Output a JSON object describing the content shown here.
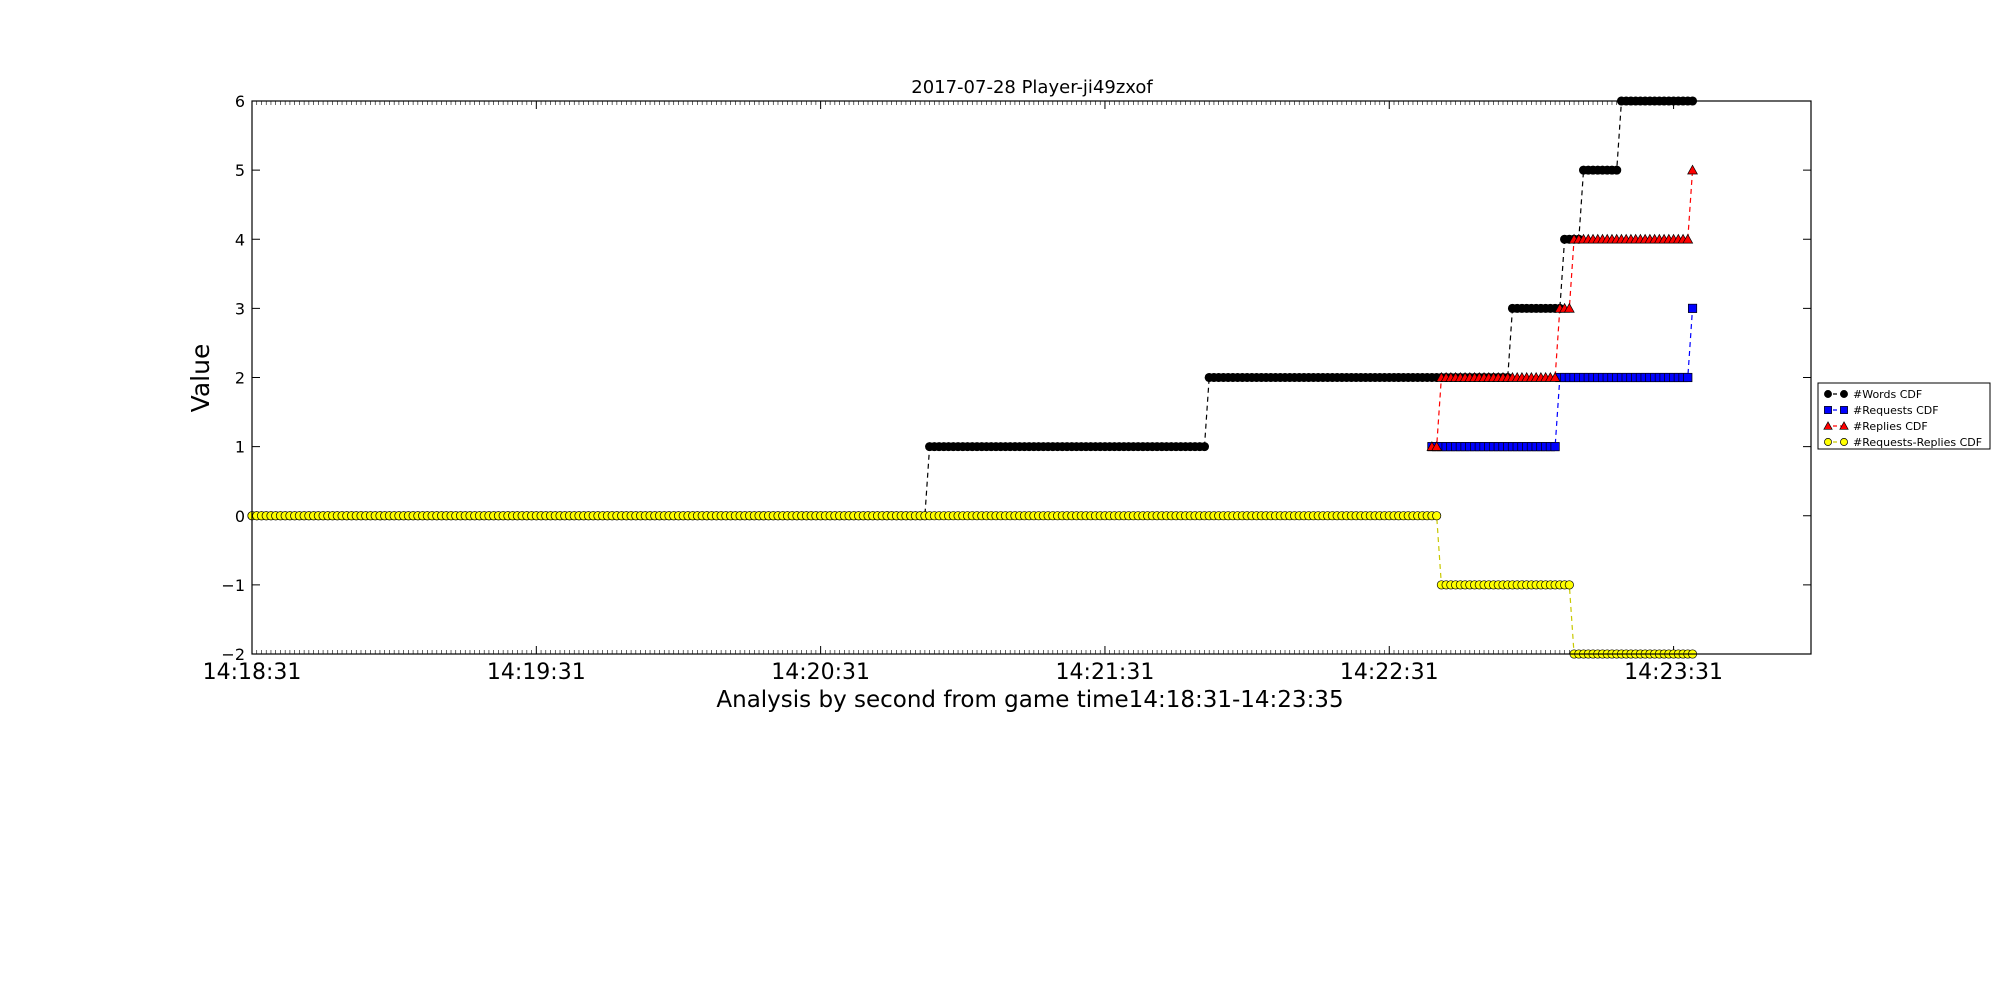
{
  "chart_data": {
    "type": "line",
    "title": "2017-07-28 Player-ji49zxof",
    "xlabel": "Analysis by second from game time14:18:31-14:23:35",
    "ylabel": "Value",
    "x_unit": "time of day (HH:MM:SS)",
    "xlim": [
      "14:18:31",
      "14:24:00"
    ],
    "ylim": [
      -2,
      6
    ],
    "x_ticks": [
      "14:18:31",
      "14:19:31",
      "14:20:31",
      "14:21:31",
      "14:22:31",
      "14:23:31"
    ],
    "y_ticks": [
      "6",
      "5",
      "4",
      "3",
      "2",
      "1",
      "0",
      "−1",
      "−2"
    ],
    "legend_position": "right, outside plot",
    "series": [
      {
        "name": "#Words CDF",
        "color": "#000000",
        "marker": "circle",
        "x_range": [
          "14:18:31",
          "14:23:35"
        ],
        "steps": [
          [
            "14:18:31",
            0
          ],
          [
            "14:20:54",
            1
          ],
          [
            "14:21:53",
            2
          ],
          [
            "14:22:57",
            3
          ],
          [
            "14:23:08",
            4
          ],
          [
            "14:23:12",
            5
          ],
          [
            "14:23:20",
            6
          ]
        ]
      },
      {
        "name": "#Requests CDF",
        "color": "#0000ff",
        "marker": "square",
        "x_range": [
          "14:22:40",
          "14:23:35"
        ],
        "steps": [
          [
            "14:22:40",
            1
          ],
          [
            "14:23:07",
            2
          ],
          [
            "14:23:35",
            3
          ]
        ]
      },
      {
        "name": "#Replies CDF",
        "color": "#ff0000",
        "marker": "triangle",
        "x_range": [
          "14:22:40",
          "14:23:35"
        ],
        "steps": [
          [
            "14:22:40",
            1
          ],
          [
            "14:22:42",
            2
          ],
          [
            "14:23:07",
            3
          ],
          [
            "14:23:10",
            4
          ],
          [
            "14:23:35",
            5
          ]
        ]
      },
      {
        "name": "#Requests-Replies CDF",
        "color": "#ffff00",
        "marker": "circle",
        "x_range": [
          "14:18:31",
          "14:23:35"
        ],
        "steps": [
          [
            "14:18:31",
            0
          ],
          [
            "14:22:42",
            -1
          ],
          [
            "14:23:10",
            -2
          ]
        ]
      }
    ]
  }
}
